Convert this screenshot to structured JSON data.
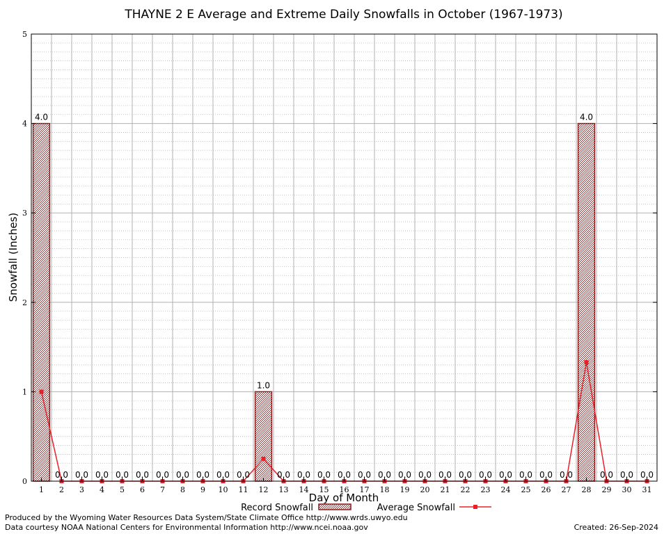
{
  "chart_data": {
    "type": "bar",
    "title": "THAYNE 2 E Average and Extreme Daily Snowfalls in October (1967-1973)",
    "xlabel": "Day of Month",
    "ylabel": "Snowfall (Inches)",
    "ylim": [
      0,
      5
    ],
    "yticks": [
      "0",
      "1",
      "2",
      "3",
      "4",
      "5"
    ],
    "categories": [
      "1",
      "2",
      "3",
      "4",
      "5",
      "6",
      "7",
      "8",
      "9",
      "10",
      "11",
      "12",
      "13",
      "14",
      "15",
      "16",
      "17",
      "18",
      "19",
      "20",
      "21",
      "22",
      "23",
      "24",
      "25",
      "26",
      "27",
      "28",
      "29",
      "30",
      "31"
    ],
    "series": [
      {
        "name": "Record Snowfall",
        "kind": "bar",
        "color": "#8b1a1a",
        "values": [
          4.0,
          0.0,
          0.0,
          0.0,
          0.0,
          0.0,
          0.0,
          0.0,
          0.0,
          0.0,
          0.0,
          1.0,
          0.0,
          0.0,
          0.0,
          0.0,
          0.0,
          0.0,
          0.0,
          0.0,
          0.0,
          0.0,
          0.0,
          0.0,
          0.0,
          0.0,
          0.0,
          4.0,
          0.0,
          0.0,
          0.0
        ],
        "labels": [
          "4.0",
          "0.0",
          "0.0",
          "0.0",
          "0.0",
          "0.0",
          "0.0",
          "0.0",
          "0.0",
          "0.0",
          "0.0",
          "1.0",
          "0.0",
          "0.0",
          "0.0",
          "0.0",
          "0.0",
          "0.0",
          "0.0",
          "0.0",
          "0.0",
          "0.0",
          "0.0",
          "0.0",
          "0.0",
          "0.0",
          "0.0",
          "4.0",
          "0.0",
          "0.0",
          "0.0"
        ]
      },
      {
        "name": "Average Snowfall",
        "kind": "line",
        "color": "#e8202a",
        "values": [
          1.0,
          0.0,
          0.0,
          0.0,
          0.0,
          0.0,
          0.0,
          0.0,
          0.0,
          0.0,
          0.0,
          0.25,
          0.0,
          0.0,
          0.0,
          0.0,
          0.0,
          0.0,
          0.0,
          0.0,
          0.0,
          0.0,
          0.0,
          0.0,
          0.0,
          0.0,
          0.0,
          1.33,
          0.0,
          0.0,
          0.0
        ]
      }
    ],
    "grid": true,
    "legend_position": "bottom-center"
  },
  "footer": {
    "producer": "Produced by the Wyoming Water Resources Data System/State Climate Office http://www.wrds.uwyo.edu",
    "courtesy": "Data courtesy NOAA National Centers for Environmental Information http://www.ncei.noaa.gov",
    "created": "Created:  26-Sep-2024"
  }
}
